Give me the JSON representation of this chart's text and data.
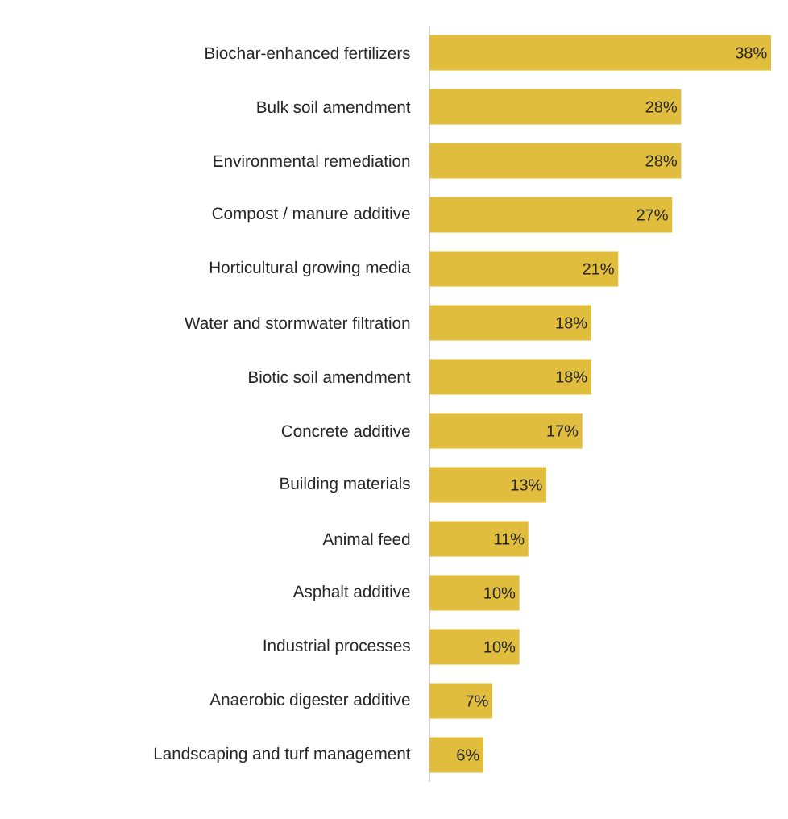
{
  "chart_data": {
    "type": "bar",
    "orientation": "horizontal",
    "color": "#e1bd3d",
    "categories": [
      "Biochar-enhanced fertilizers",
      "Bulk soil amendment",
      "Environmental remediation",
      "Compost / manure additive",
      "Horticultural growing media",
      "Water and stormwater filtration",
      "Biotic soil amendment",
      "Concrete additive",
      "Building materials",
      "Animal feed",
      "Asphalt additive",
      "Industrial processes",
      "Anaerobic digester additive",
      "Landscaping and turf management"
    ],
    "values": [
      38,
      28,
      28,
      27,
      21,
      18,
      18,
      17,
      13,
      11,
      10,
      10,
      7,
      6
    ],
    "value_labels": [
      "38%",
      "28%",
      "28%",
      "27%",
      "21%",
      "18%",
      "18%",
      "17%",
      "13%",
      "11%",
      "10%",
      "10%",
      "7%",
      "6%"
    ]
  }
}
